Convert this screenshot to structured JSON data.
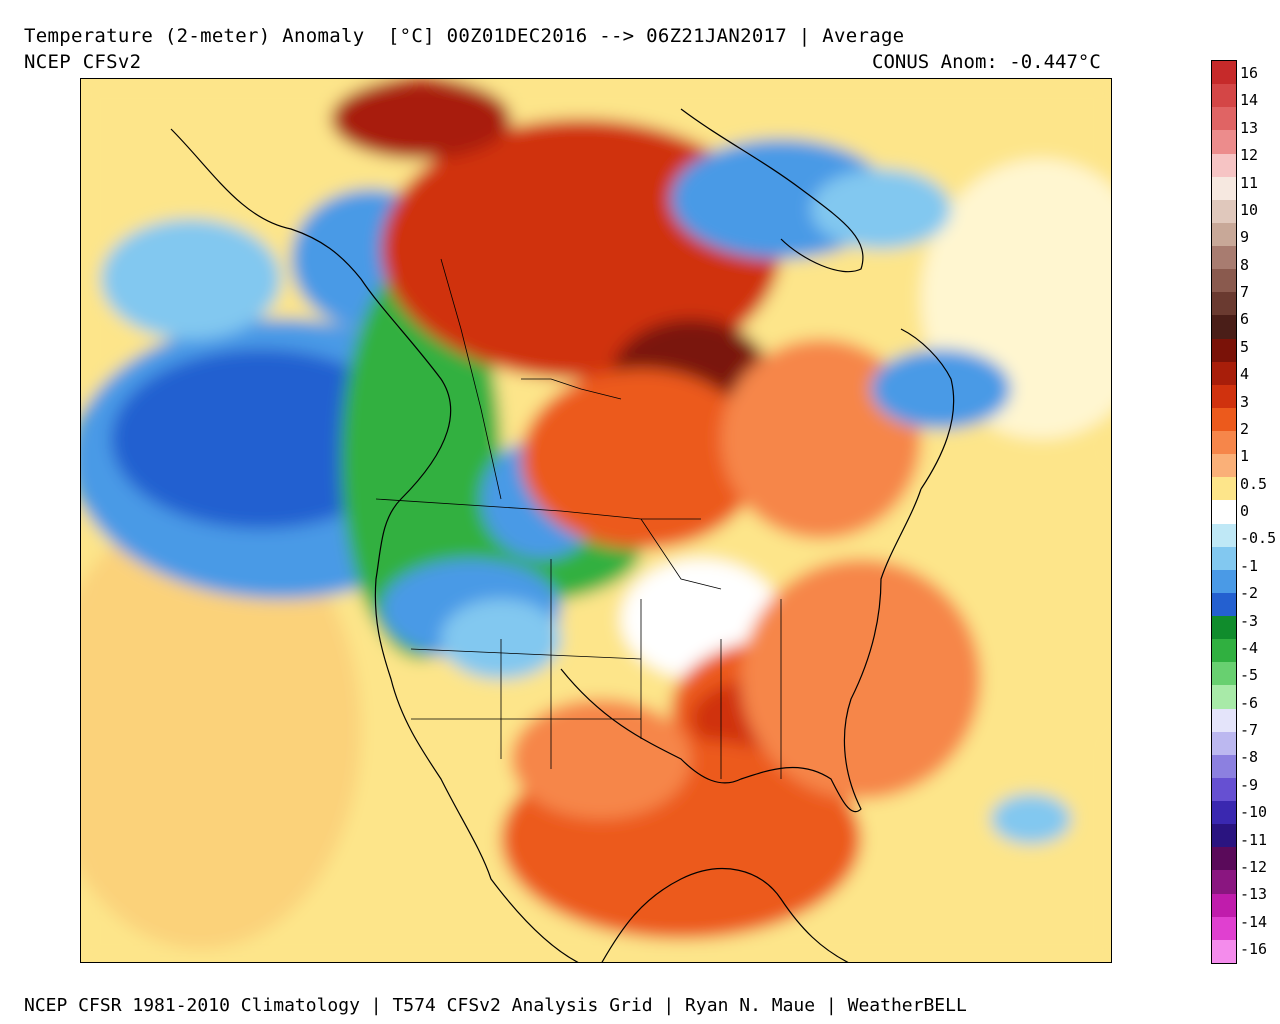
{
  "header": {
    "title": "Temperature (2-meter) Anomaly  [°C] 00Z01DEC2016 --> 06Z21JAN2017 | Average",
    "model": "NCEP CFSv2",
    "conus_anomaly": "CONUS Anom: -0.447°C"
  },
  "footer": {
    "credits": "NCEP CFSR 1981-2010 Climatology | T574 CFSv2 Analysis Grid | Ryan N. Maue | WeatherBELL"
  },
  "colorbar": {
    "labels": [
      "16",
      "14",
      "13",
      "12",
      "11",
      "10",
      "9",
      "8",
      "7",
      "6",
      "5",
      "4",
      "3",
      "2",
      "1",
      "0.5",
      "0",
      "-0.5",
      "-1",
      "-2",
      "-3",
      "-4",
      "-5",
      "-6",
      "-7",
      "-8",
      "-9",
      "-10",
      "-11",
      "-12",
      "-13",
      "-14",
      "-16"
    ],
    "colors": [
      "#c62a2a",
      "#d44646",
      "#e06464",
      "#ec8c8c",
      "#f6c4c4",
      "#f6e8e0",
      "#e0c8bc",
      "#c8a898",
      "#a87c70",
      "#8a5a4e",
      "#6a3a30",
      "#4a1e18",
      "#7a1208",
      "#a81e0a",
      "#d0320e",
      "#ec5a1c",
      "#f6864a",
      "#fab078",
      "#fde58a",
      "#ffffff",
      "#bfe8f6",
      "#82c8f0",
      "#4a9ae6",
      "#2460d0",
      "#108c2c",
      "#30b040",
      "#68d070",
      "#a8eaa8",
      "#e4e4fa",
      "#bcb8f0",
      "#8c80e0",
      "#6650d2",
      "#3a28b0",
      "#2a1480",
      "#5a0a5a",
      "#8a1680",
      "#c01cac",
      "#e040d0",
      "#f48cec"
    ]
  },
  "legend_units": "°C"
}
